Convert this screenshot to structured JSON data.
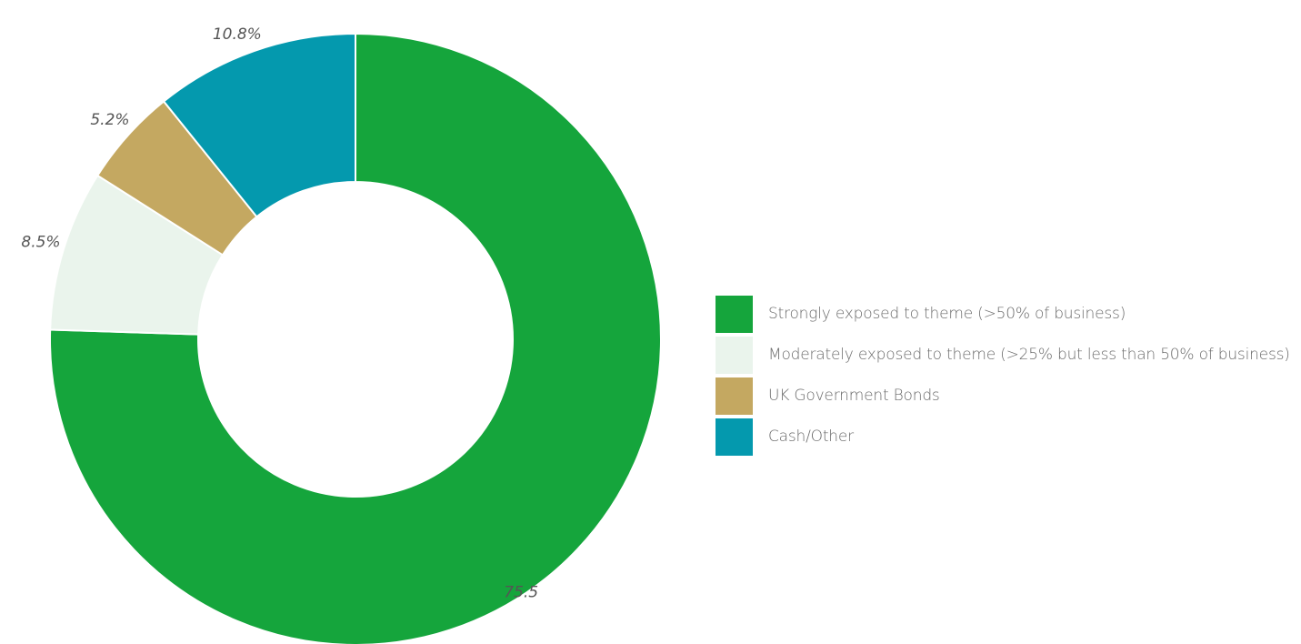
{
  "chart_data": {
    "type": "pie",
    "variant": "donut",
    "title": "",
    "series": [
      {
        "name": "Strongly exposed to theme (>50% of business)",
        "value": 75.5,
        "label": "75.5",
        "color": "#15a53c"
      },
      {
        "name": "Moderately exposed to theme (>25% but less than 50% of business)",
        "value": 8.5,
        "label": "8.5%",
        "color": "#eaf4ec"
      },
      {
        "name": "UK Government Bonds",
        "value": 5.2,
        "label": "5.2%",
        "color": "#c4a861"
      },
      {
        "name": "Cash/Other",
        "value": 10.8,
        "label": "10.8%",
        "color": "#0499ae"
      }
    ],
    "start_angle": "top, clockwise",
    "legend_position": "right"
  }
}
